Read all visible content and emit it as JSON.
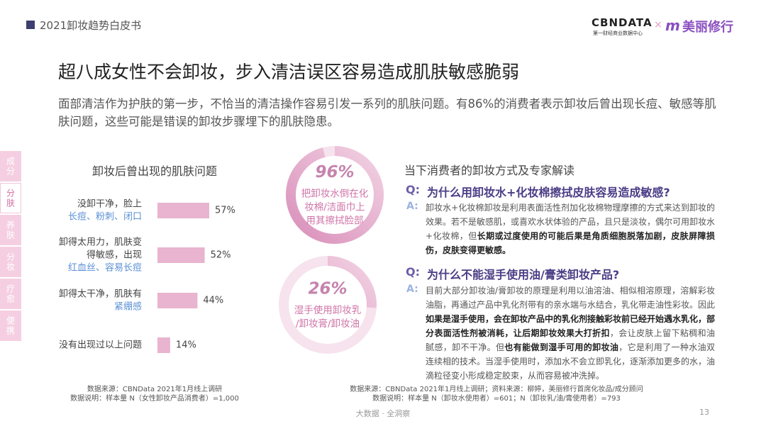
{
  "header": {
    "title": "2021卸妆趋势白皮书",
    "logo_main": "CBNDATA",
    "logo_sub": "第一财经商业数据中心",
    "logo_x": "×",
    "partner": "美丽修行"
  },
  "sidebar": {
    "tabs": [
      "成分",
      "分肤",
      "养肤",
      "分妆",
      "疗愈",
      "便携"
    ],
    "active": 1
  },
  "headline": "超八成女性不会卸妆，步入清洁误区容易造成肌肤敏感脆弱",
  "intro": "面部清洁作为护肤的第一步，不恰当的清洁操作容易引发一系列的肌肤问题。有86%的消费者表示卸妆后曾出现长痘、敏感等肌肤问题，这些可能是错误的卸妆步骤埋下的肌肤隐患。",
  "chart_data": {
    "type": "bar",
    "orientation": "horizontal",
    "title": "卸妆后曾出现的肌肤问题",
    "categories": [
      {
        "lines": [
          "没卸干净，脸上"
        ],
        "highlight": "长痘、粉刺、闭口"
      },
      {
        "lines": [
          "卸得太用力，肌肤变",
          "得敏感，出现"
        ],
        "highlight": "红血丝、容易长痘"
      },
      {
        "lines": [
          "卸得太干净，肌肤有"
        ],
        "highlight": "紧绷感"
      },
      {
        "lines": [
          "没有出现过以上问题"
        ]
      }
    ],
    "values": [
      57,
      52,
      44,
      14
    ],
    "value_labels": [
      "57%",
      "52%",
      "44%",
      "14%"
    ],
    "color": "#e8b4cf",
    "highlight_color": "#5b8fd6"
  },
  "chart_notes": [
    "数据来源：CBNData 2021年1月线上调研",
    "数据说明：样本量 N（女性卸妆产品消费者）=1,000"
  ],
  "section_title": "当下消费者的卸妆方式及专家解读",
  "rings": [
    {
      "value": 96,
      "value_label": "96%",
      "lines": [
        "把卸妆水倒在化",
        "妆棉/洁面巾上",
        "用其擦拭脸部"
      ]
    },
    {
      "value": 26,
      "value_label": "26%",
      "lines": [
        "湿手使用卸妆乳",
        "/卸妆膏/卸妆油"
      ]
    }
  ],
  "qa": [
    {
      "q": "Q:",
      "question": "为什么用卸妆水+化妆棉擦拭皮肤容易造成敏感?",
      "a": "A:",
      "answer": [
        {
          "text": "卸妆水+化妆棉卸妆是利用表面活性剂加化妆棉物理摩擦的方式来达到卸妆的效果。若不是敏感肌，或喜欢水状体验的产品，且只是淡妆，偶尔可用卸妆水+化妆棉，但",
          "bold": false
        },
        {
          "text": "长期或过度使用的可能后果是角质细胞脱落加剧，皮肤屏障损伤，皮肤变得更敏感。",
          "bold": true
        }
      ]
    },
    {
      "q": "Q:",
      "question": "为什么不能湿手使用油/膏类卸妆产品?",
      "a": "A:",
      "answer": [
        {
          "text": "目前大部分卸妆油/膏卸妆的原理是利用以油溶油、相似相溶原理，溶解彩妆油脂，再通过产品中乳化剂带有的亲水端与水结合，乳化带走油性彩妆。因此",
          "bold": false
        },
        {
          "text": "如果是湿手使用，会在卸妆产品中的乳化剂接触彩妆前已经开始遇水乳化，部分表面活性剂被消耗，让后期卸妆效果大打折扣",
          "bold": true
        },
        {
          "text": "，会让皮肤上留下粘稠和油腻感，卸不干净。但",
          "bold": false
        },
        {
          "text": "也有能做到湿手可用的卸妆油",
          "bold": true
        },
        {
          "text": "，它是利用了一种水油双连续相的技术。当湿手使用时，添加水不会立即乳化，逐渐添加更多的水，油滴粒径变小形成稳定胶束，从而容易被冲洗掉。",
          "bold": false
        }
      ]
    }
  ],
  "right_notes": [
    "数据来源：CBNData 2021年1月线上调研；资料来源：柳婷，美丽修行首席化妆品/成分顾问",
    "数据说明：样本量 N（卸妆水使用者）=601；N（卸妆乳/油/膏使用者）=793"
  ],
  "footer": {
    "slogan": "大数据 · 全洞察",
    "page": 13
  }
}
